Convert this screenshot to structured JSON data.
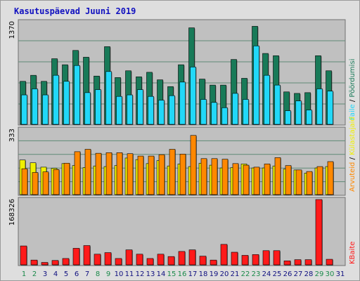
{
  "title": "Kasutuspäevad Juuni 2019",
  "colors": {
    "frame_bg": "#dedede",
    "panel_bg": "#c0c0c0",
    "grid": "#5f8a76",
    "pages": "#187a58",
    "files": "#22d8f8",
    "hits": "#0000ff",
    "visits": "#f0f000",
    "visits_orange": "#ff8800",
    "kbytes": "#ff1a1a",
    "weekend_day": "#1a8a4a",
    "weekday": "#101080"
  },
  "chart_data": [
    {
      "type": "bar",
      "title": "Kasutuspäevad Juuni 2019",
      "categories": [
        "1",
        "2",
        "3",
        "4",
        "5",
        "6",
        "7",
        "8",
        "9",
        "10",
        "11",
        "12",
        "13",
        "14",
        "15",
        "16",
        "17",
        "18",
        "19",
        "20",
        "21",
        "22",
        "23",
        "24",
        "25",
        "26",
        "27",
        "28",
        "29",
        "30",
        "31"
      ],
      "weekend_days": [
        "1",
        "2",
        "8",
        "9",
        "15",
        "16",
        "22",
        "23",
        "29",
        "30"
      ],
      "ylim": [
        0,
        1370
      ],
      "max_label": "1370",
      "series": [
        {
          "name": "Pöördumisi",
          "values": [
            580,
            660,
            580,
            880,
            800,
            990,
            900,
            650,
            1040,
            630,
            720,
            640,
            700,
            600,
            510,
            800,
            1290,
            610,
            530,
            530,
            870,
            620,
            1310,
            950,
            920,
            440,
            420,
            430,
            920,
            720,
            0
          ]
        },
        {
          "name": "Faile",
          "values": [
            400,
            480,
            400,
            660,
            580,
            790,
            430,
            470,
            710,
            380,
            400,
            470,
            380,
            330,
            390,
            570,
            770,
            340,
            300,
            230,
            420,
            340,
            1050,
            660,
            530,
            190,
            320,
            200,
            480,
            450,
            0
          ]
        }
      ]
    },
    {
      "type": "bar",
      "ylim": [
        0,
        333
      ],
      "max_label": "333",
      "series": [
        {
          "name": "Külastajaid",
          "values": [
            178,
            164,
            142,
            136,
            160,
            150,
            140,
            148,
            145,
            150,
            188,
            180,
            160,
            175,
            148,
            158,
            145,
            162,
            152,
            138,
            140,
            158,
            138,
            138,
            148,
            132,
            128,
            112,
            138,
            145,
            0
          ]
        },
        {
          "name": "Arvuteid",
          "values": [
            134,
            115,
            118,
            130,
            162,
            220,
            232,
            212,
            215,
            215,
            210,
            198,
            198,
            205,
            232,
            208,
            302,
            185,
            185,
            182,
            160,
            152,
            142,
            158,
            190,
            150,
            128,
            120,
            145,
            170,
            0
          ]
        }
      ]
    },
    {
      "type": "bar",
      "ylim": [
        0,
        168326
      ],
      "max_label": "168326",
      "series": [
        {
          "name": "KBaite",
          "values": [
            50000,
            14000,
            8000,
            13000,
            18000,
            44000,
            51000,
            29000,
            33000,
            18000,
            40000,
            29000,
            18000,
            29000,
            23000,
            36000,
            40000,
            24000,
            14000,
            54000,
            34000,
            26000,
            28000,
            38000,
            38000,
            12000,
            15000,
            15000,
            168326,
            16000,
            0
          ]
        }
      ]
    }
  ]
}
